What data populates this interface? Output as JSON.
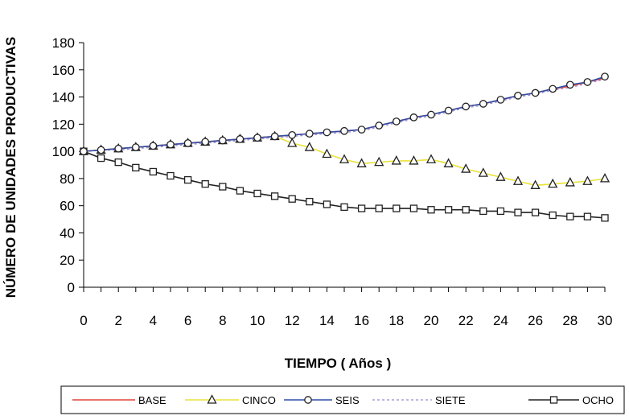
{
  "chart_data": {
    "type": "line",
    "xlabel": "TIEMPO ( Años )",
    "ylabel": "NÚMERO DE UNIDADES PRODUCTIVAS",
    "xlim": [
      0,
      30
    ],
    "ylim": [
      0,
      180
    ],
    "x_ticks": [
      0,
      2,
      4,
      6,
      8,
      10,
      12,
      14,
      16,
      18,
      20,
      22,
      24,
      26,
      28,
      30
    ],
    "y_ticks": [
      0,
      20,
      40,
      60,
      80,
      100,
      120,
      140,
      160,
      180
    ],
    "grid": false,
    "legend_position": "bottom",
    "x": [
      0,
      1,
      2,
      3,
      4,
      5,
      6,
      7,
      8,
      9,
      10,
      11,
      12,
      13,
      14,
      15,
      16,
      17,
      18,
      19,
      20,
      21,
      22,
      23,
      24,
      25,
      26,
      27,
      28,
      29,
      30
    ],
    "series": [
      {
        "name": "BASE",
        "color": "#e0443a",
        "style": "solid",
        "marker": "none",
        "values": [
          100,
          101,
          102,
          103,
          104,
          105,
          106,
          107,
          108,
          109,
          110,
          111,
          112,
          113,
          114,
          115,
          116,
          119,
          122,
          125,
          127,
          130,
          133,
          135,
          138,
          141,
          143,
          146,
          148,
          151,
          154
        ]
      },
      {
        "name": "CINCO",
        "color": "#e8e23a",
        "style": "solid",
        "marker": "triangle",
        "values": [
          100,
          101,
          102,
          103,
          104,
          105,
          106,
          107,
          108,
          109,
          110,
          111,
          106,
          103,
          98,
          94,
          91,
          92,
          93,
          93,
          94,
          91,
          87,
          84,
          81,
          78,
          75,
          76,
          77,
          78,
          80
        ]
      },
      {
        "name": "SEIS",
        "color": "#2e4fa8",
        "style": "solid",
        "marker": "circle",
        "values": [
          100,
          101,
          102,
          103,
          104,
          105,
          106,
          107,
          108,
          109,
          110,
          111,
          112,
          113,
          114,
          115,
          116,
          119,
          122,
          125,
          127,
          130,
          133,
          135,
          138,
          141,
          143,
          146,
          149,
          151,
          155
        ]
      },
      {
        "name": "SIETE",
        "color": "#9a8ad0",
        "style": "dashed",
        "marker": "none",
        "values": [
          100,
          101,
          101,
          102,
          103,
          104,
          105,
          106,
          107,
          108,
          109,
          110,
          111,
          112,
          113,
          114,
          115,
          118,
          121,
          124,
          126,
          129,
          132,
          134,
          137,
          140,
          142,
          145,
          147,
          150,
          153
        ]
      },
      {
        "name": "OCHO",
        "color": "#222222",
        "style": "solid",
        "marker": "square",
        "values": [
          100,
          95,
          92,
          88,
          85,
          82,
          79,
          76,
          74,
          71,
          69,
          67,
          65,
          63,
          61,
          59,
          58,
          58,
          58,
          58,
          57,
          57,
          57,
          56,
          56,
          55,
          55,
          53,
          52,
          52,
          51
        ]
      }
    ]
  }
}
